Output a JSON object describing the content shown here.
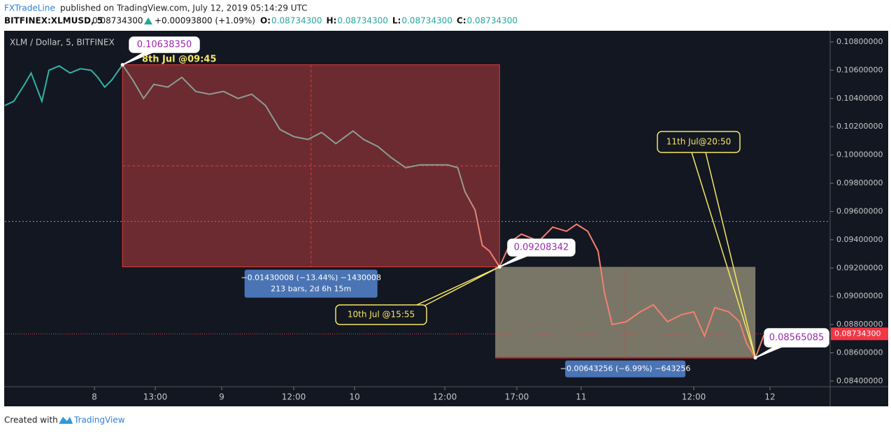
{
  "header": {
    "publisher": "FXTradeLine",
    "published": "published on TradingView.com, July 12, 2019 05:14:29 UTC",
    "symbol": "BITFINEX:XLMUSD, 5",
    "price": "0.08734300",
    "change": "+0.00093800 (+1.09%)",
    "ohlc": [
      {
        "label": "O:",
        "value": "0.08734300"
      },
      {
        "label": "H:",
        "value": "0.08734300"
      },
      {
        "label": "L:",
        "value": "0.08734300"
      },
      {
        "label": "C:",
        "value": "0.08734300"
      }
    ]
  },
  "chart_data": {
    "type": "line",
    "title": "XLM / Dollar, 5, BITFINEX",
    "x": [
      -19.1,
      -17.2,
      -14.9,
      -13.5,
      -11.2,
      -9.7,
      -7.5,
      -5.2,
      -3.0,
      -0.7,
      0.7,
      2.2,
      3.7,
      6.0,
      8.2,
      10.5,
      12.7,
      15.1,
      17.4,
      19.7,
      22.0,
      24.3,
      26.7,
      29.0,
      31.3,
      33.7,
      36.0,
      38.8,
      41.5,
      44.3,
      47.7,
      49.2,
      51.1,
      52.9,
      54.8,
      56.7,
      58.5,
      60.2,
      60.9,
      61.4,
      62.1,
      62.6,
      63.1,
      63.8,
      64.6,
      65.5,
      67.4,
      68.9,
      70.4,
      71.5,
      72.7,
      73.8,
      74.5,
      75.3,
      76.8,
      78.3,
      79.7,
      81.2,
      82.7,
      84.0,
      85.7,
      87.3,
      89.5,
      91.2,
      92.3,
      93.7,
      95.0,
      96.7,
      98.3
    ],
    "values": [
      0.1035,
      0.1038,
      0.105,
      0.1058,
      0.1038,
      0.106,
      0.1063,
      0.1058,
      0.1061,
      0.106,
      0.1055,
      0.1048,
      0.1053,
      0.1063835,
      0.1053,
      0.104,
      0.105,
      0.1048,
      0.1055,
      0.1045,
      0.1043,
      0.1045,
      0.104,
      0.1043,
      0.1035,
      0.1018,
      0.1013,
      0.1011,
      0.1016,
      0.1008,
      0.1017,
      0.1011,
      0.1006,
      0.0998,
      0.0991,
      0.0993,
      0.0993,
      0.0993,
      0.0991,
      0.0974,
      0.0961,
      0.0936,
      0.0932,
      0.09208342,
      0.0939,
      0.0944,
      0.0939,
      0.0949,
      0.0946,
      0.0951,
      0.0946,
      0.0932,
      0.0902,
      0.088,
      0.0882,
      0.0889,
      0.0894,
      0.0882,
      0.0887,
      0.0889,
      0.0872,
      0.0892,
      0.0889,
      0.0882,
      0.0867,
      0.08565085,
      0.0872,
      0.0877,
      0.087343
    ],
    "line_colors": [
      "#2fb3a5",
      "#8c9c94",
      "#f4806e"
    ],
    "xlim": [
      -19.1,
      105.5
    ],
    "xticks": [
      {
        "value": 0,
        "label": "8"
      },
      {
        "value": 13,
        "label": "13:00"
      },
      {
        "value": 24,
        "label": "9"
      },
      {
        "value": 36,
        "label": "12:00"
      },
      {
        "value": 48,
        "label": "10"
      },
      {
        "value": 60,
        "label": "12:00"
      },
      {
        "value": 65,
        "label": "17:00"
      },
      {
        "value": 72,
        "label": "11"
      },
      {
        "value": 84,
        "label": "12:00"
      },
      {
        "value": 96,
        "label": "12"
      }
    ],
    "ylim": [
      0.0836,
      0.10874
    ],
    "yticks": [
      {
        "value": 0.084,
        "label": "0.08400000"
      },
      {
        "value": 0.086,
        "label": "0.08600000"
      },
      {
        "value": 0.088,
        "label": "0.08800000"
      },
      {
        "value": 0.09,
        "label": "0.09000000"
      },
      {
        "value": 0.092,
        "label": "0.09200000"
      },
      {
        "value": 0.094,
        "label": "0.09400000"
      },
      {
        "value": 0.096,
        "label": "0.09600000"
      },
      {
        "value": 0.098,
        "label": "0.09800000"
      },
      {
        "value": 0.1,
        "label": "0.10000000"
      },
      {
        "value": 0.102,
        "label": "0.10200000"
      },
      {
        "value": 0.104,
        "label": "0.10400000"
      },
      {
        "value": 0.106,
        "label": "0.10600000"
      },
      {
        "value": 0.108,
        "label": "0.10800000"
      }
    ],
    "last_price": {
      "value": 0.087343,
      "label": "0.08734300",
      "color": "#f23645"
    },
    "reference_level": 0.0953,
    "boxes": [
      {
        "x": [
          6.0,
          63.8
        ],
        "y": [
          0.1063835,
          0.09208342
        ],
        "fill": "rgba(196,64,64,0.5)",
        "labels": [
          "−0.01430008 (−13.44%) −1430008",
          "213 bars, 2d 6h 15m"
        ]
      },
      {
        "x": [
          63.5,
          93.7
        ],
        "y": [
          0.09208342,
          0.08565085
        ],
        "fill": "rgba(206,196,160,0.55)",
        "labels": [
          "−0.00643256 (−6.99%) −643256"
        ]
      }
    ],
    "annotations": [
      {
        "text": "0.10638350",
        "x": 6.0,
        "y": 0.1063835
      },
      {
        "text": "8th Jul @09:45",
        "x": 6.0,
        "y": 0.1063835
      },
      {
        "text": "0.09208342",
        "x": 63.8,
        "y": 0.09208342
      },
      {
        "text": "10th Jul @15:55",
        "x": 63.8,
        "y": 0.09208342
      },
      {
        "text": "11th Jul@20:50",
        "x": 93.7,
        "y": 0.08565085
      },
      {
        "text": "0.08565085",
        "x": 93.7,
        "y": 0.08565085
      }
    ]
  },
  "footer": {
    "created": "Created with",
    "brand": "TradingView"
  }
}
